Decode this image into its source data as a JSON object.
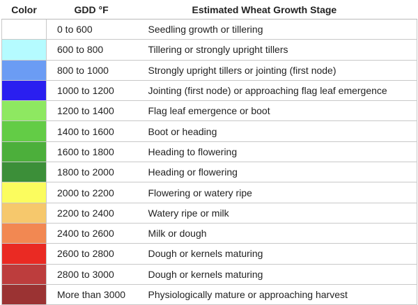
{
  "headers": {
    "color": "Color",
    "gdd": "GDD °F",
    "stage": "Estimated Wheat Growth Stage"
  },
  "rows": [
    {
      "color": "#ffffff",
      "gdd": "0 to 600",
      "stage": "Seedling growth or tillering"
    },
    {
      "color": "#b5fbff",
      "gdd": "600 to 800",
      "stage": "Tillering or strongly upright tillers"
    },
    {
      "color": "#6b9cf4",
      "gdd": "800 to 1000",
      "stage": "Strongly upright tillers or jointing (first node)"
    },
    {
      "color": "#2a1ff0",
      "gdd": "1000 to 1200",
      "stage": "Jointing (first node) or approaching flag leaf emergence"
    },
    {
      "color": "#8ee861",
      "gdd": "1200 to 1400",
      "stage": "Flag leaf emergence or boot"
    },
    {
      "color": "#63cc46",
      "gdd": "1400 to 1600",
      "stage": "Boot or heading"
    },
    {
      "color": "#4caf3b",
      "gdd": "1600 to 1800",
      "stage": "Heading to flowering"
    },
    {
      "color": "#3c8f39",
      "gdd": "1800 to 2000",
      "stage": "Heading or flowering"
    },
    {
      "color": "#fbfc5e",
      "gdd": "2000 to 2200",
      "stage": "Flowering or watery ripe"
    },
    {
      "color": "#f6c86c",
      "gdd": "2200 to 2400",
      "stage": "Watery ripe or milk"
    },
    {
      "color": "#f28852",
      "gdd": "2400 to 2600",
      "stage": "Milk or dough"
    },
    {
      "color": "#ea2a23",
      "gdd": "2600 to 2800",
      "stage": "Dough or kernels maturing"
    },
    {
      "color": "#bd3d3d",
      "gdd": "2800 to 3000",
      "stage": "Dough or kernels maturing"
    },
    {
      "color": "#9b3333",
      "gdd": "More than 3000",
      "stage": "Physiologically mature or approaching harvest"
    }
  ]
}
